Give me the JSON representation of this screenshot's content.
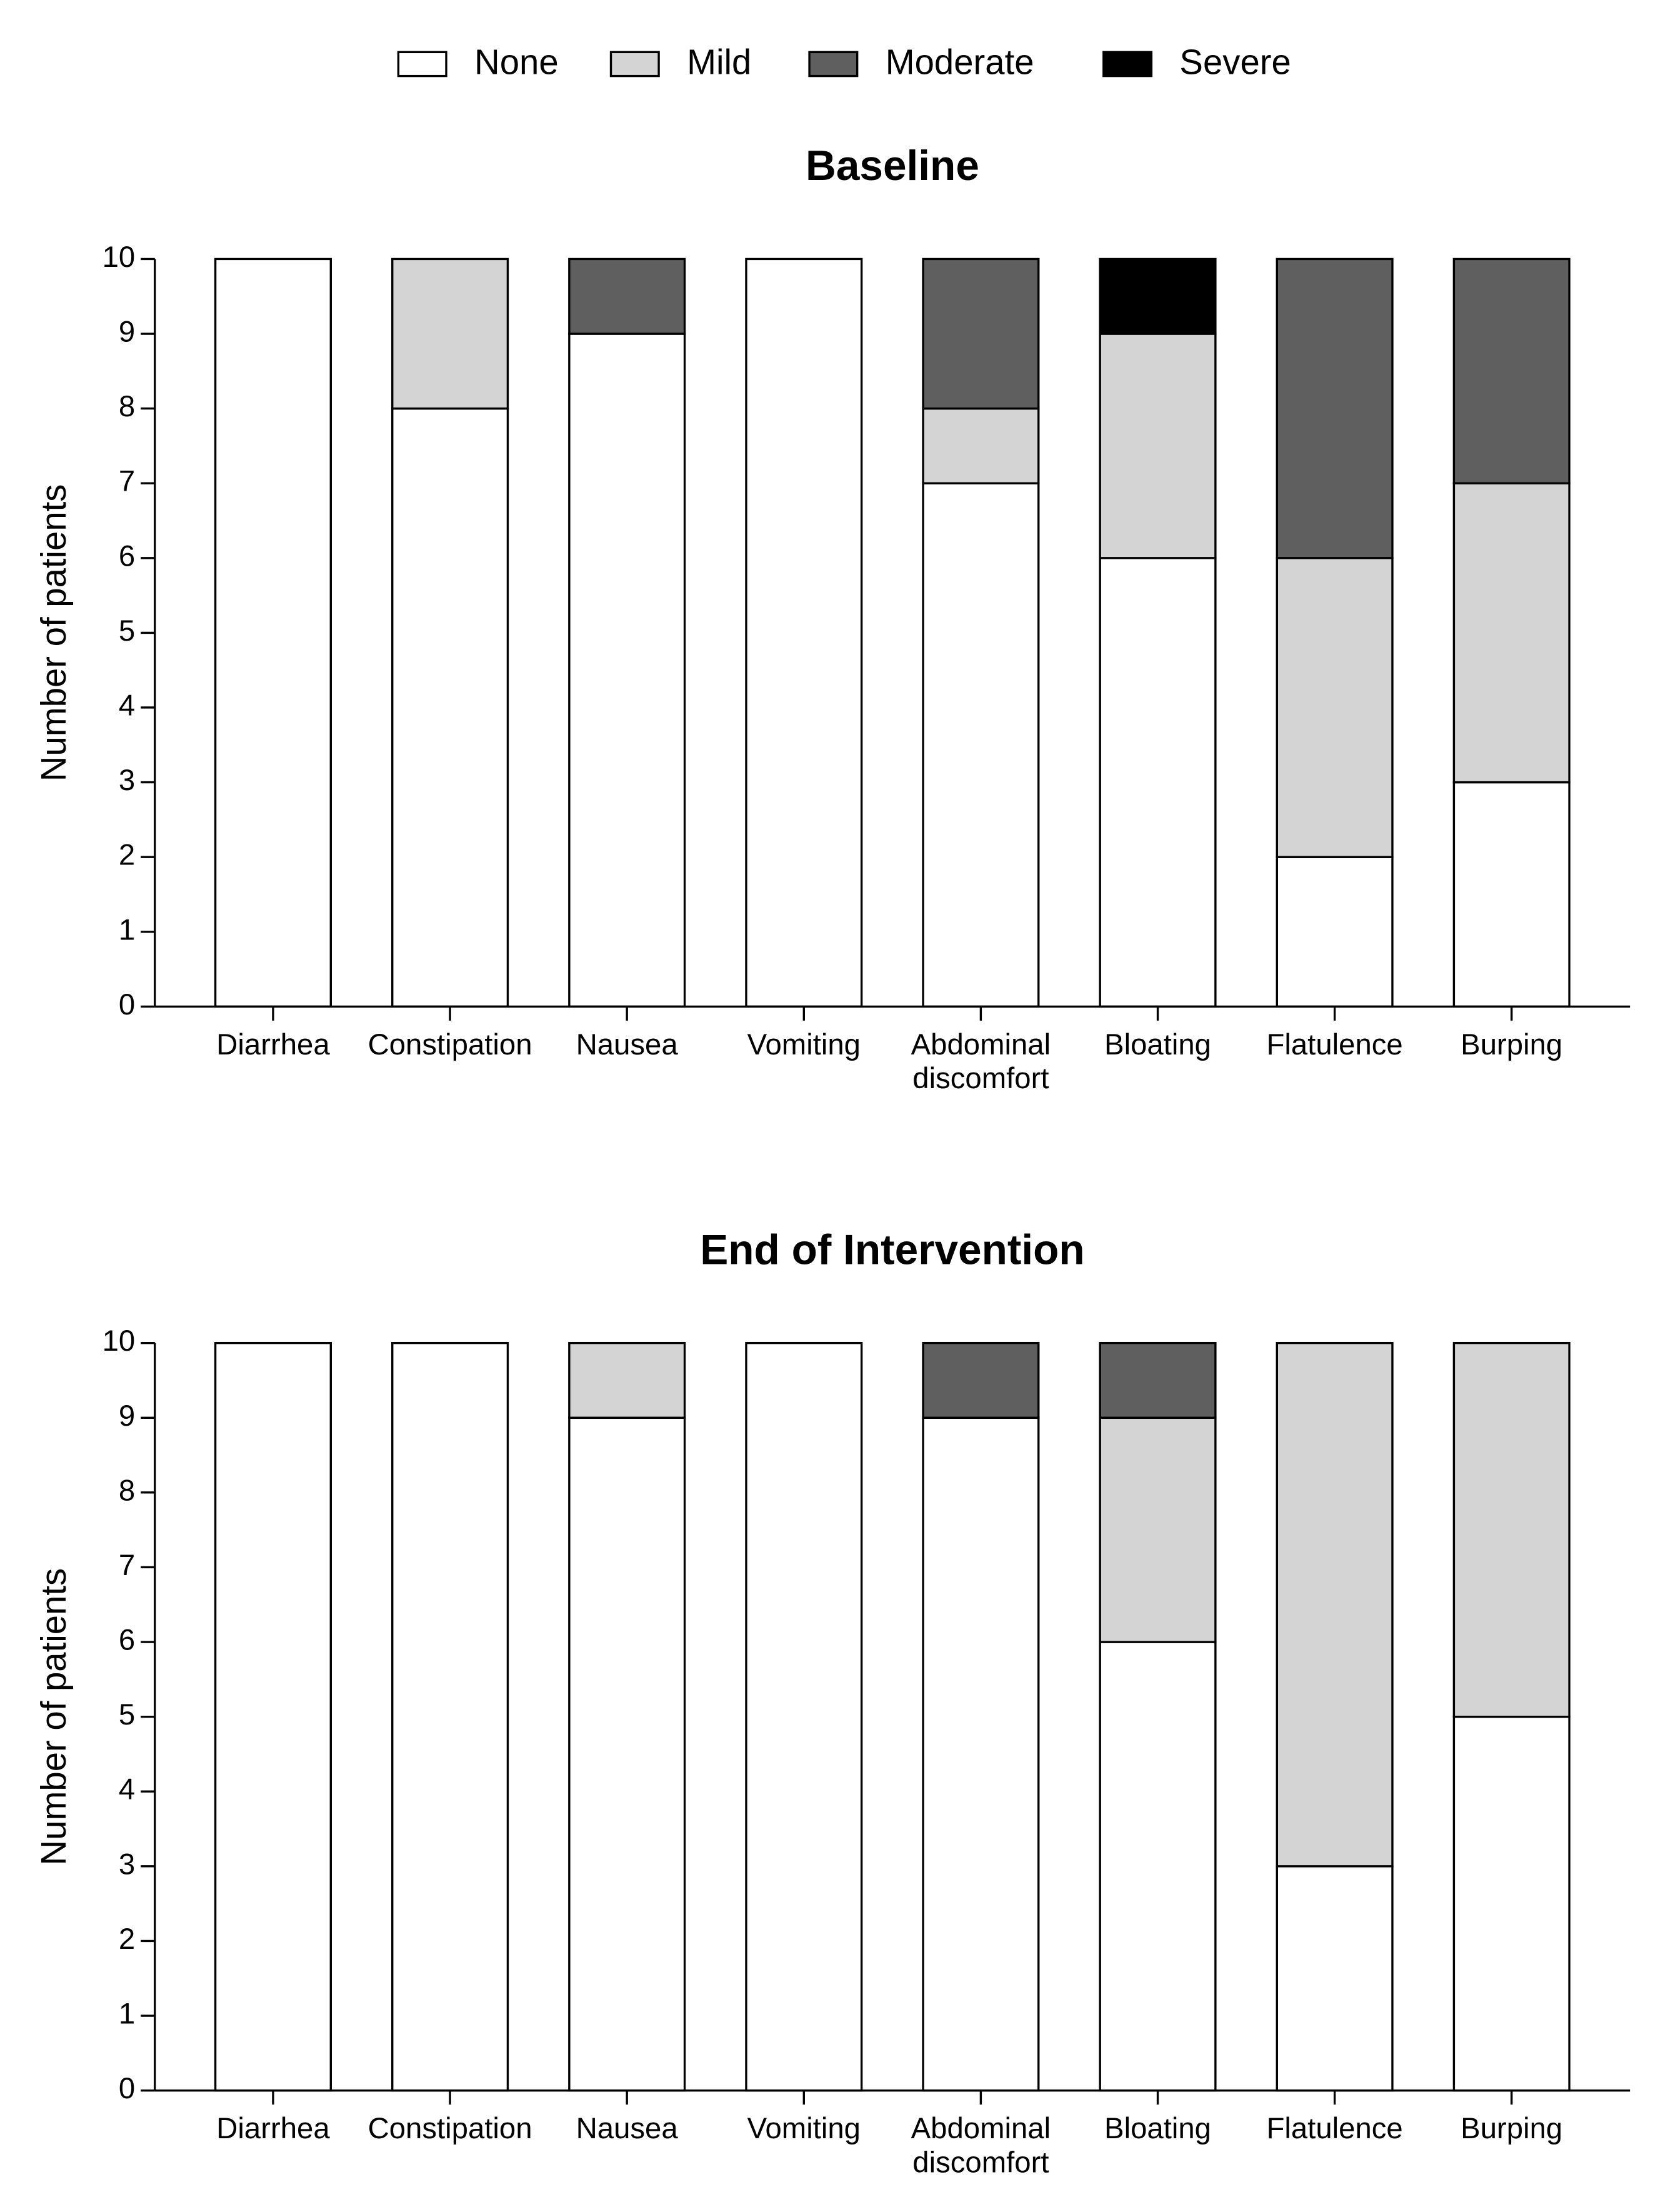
{
  "chart_data": [
    {
      "type": "stacked_bar",
      "title": "Baseline",
      "y_label": "Number of patients",
      "categories": [
        "Diarrhea",
        "Constipation",
        "Nausea",
        "Vomiting",
        "Abdominal discomfort",
        "Bloating",
        "Flatulence",
        "Burping"
      ],
      "series": [
        {
          "name": "None",
          "color": "#ffffff",
          "values": [
            10,
            8,
            9,
            10,
            7,
            6,
            2,
            3
          ]
        },
        {
          "name": "Mild",
          "color": "#d4d4d4",
          "values": [
            0,
            2,
            0,
            0,
            1,
            3,
            4,
            4
          ]
        },
        {
          "name": "Moderate",
          "color": "#5f5f5f",
          "values": [
            0,
            0,
            1,
            0,
            2,
            0,
            4,
            3
          ]
        },
        {
          "name": "Severe",
          "color": "#000000",
          "values": [
            0,
            0,
            0,
            0,
            0,
            1,
            0,
            0
          ]
        }
      ],
      "ylim": [
        0,
        10
      ],
      "yticks": [
        0,
        1,
        2,
        3,
        4,
        5,
        6,
        7,
        8,
        9,
        10
      ],
      "legend": "top"
    },
    {
      "type": "stacked_bar",
      "title": "End of Intervention",
      "y_label": "Number of patients",
      "categories": [
        "Diarrhea",
        "Constipation",
        "Nausea",
        "Vomiting",
        "Abdominal discomfort",
        "Bloating",
        "Flatulence",
        "Burping"
      ],
      "series": [
        {
          "name": "None",
          "color": "#ffffff",
          "values": [
            10,
            10,
            9,
            10,
            9,
            6,
            3,
            5
          ]
        },
        {
          "name": "Mild",
          "color": "#d4d4d4",
          "values": [
            0,
            0,
            1,
            0,
            0,
            3,
            7,
            5
          ]
        },
        {
          "name": "Moderate",
          "color": "#5f5f5f",
          "values": [
            0,
            0,
            0,
            0,
            1,
            1,
            0,
            0
          ]
        },
        {
          "name": "Severe",
          "color": "#000000",
          "values": [
            0,
            0,
            0,
            0,
            0,
            0,
            0,
            0
          ]
        }
      ],
      "ylim": [
        0,
        10
      ],
      "yticks": [
        0,
        1,
        2,
        3,
        4,
        5,
        6,
        7,
        8,
        9,
        10
      ]
    }
  ]
}
